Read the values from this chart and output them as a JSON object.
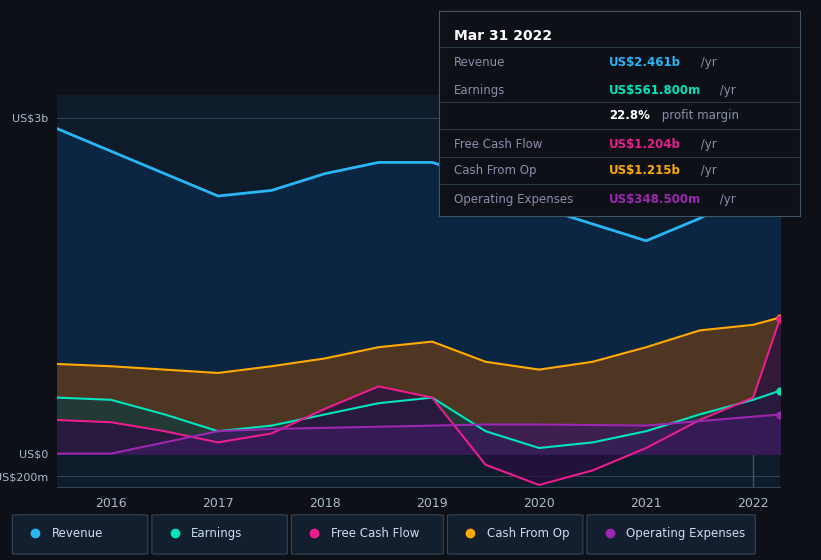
{
  "bg_color": "#0d1117",
  "chart_bg": "#0d1b2a",
  "years": [
    2015.5,
    2016.0,
    2016.5,
    2017.0,
    2017.5,
    2018.0,
    2018.5,
    2019.0,
    2019.5,
    2020.0,
    2020.5,
    2021.0,
    2021.5,
    2022.0,
    2022.25
  ],
  "revenue": [
    2900,
    2700,
    2500,
    2300,
    2350,
    2500,
    2600,
    2600,
    2450,
    2200,
    2050,
    1900,
    2100,
    2350,
    2461
  ],
  "cash_from_op": [
    800,
    780,
    750,
    720,
    780,
    850,
    950,
    1000,
    820,
    750,
    820,
    950,
    1100,
    1150,
    1215
  ],
  "earnings": [
    500,
    480,
    350,
    200,
    250,
    350,
    450,
    500,
    200,
    50,
    100,
    200,
    350,
    480,
    562
  ],
  "free_cash_flow": [
    300,
    280,
    200,
    100,
    180,
    400,
    600,
    500,
    -100,
    -280,
    -150,
    50,
    300,
    500,
    1204
  ],
  "op_expenses": [
    0,
    0,
    100,
    200,
    220,
    230,
    240,
    250,
    260,
    260,
    255,
    250,
    290,
    330,
    349
  ],
  "revenue_color": "#29b6f6",
  "earnings_color": "#00e5be",
  "fcf_color": "#e91e8c",
  "cashop_color": "#ffaa00",
  "opex_color": "#9c27b0",
  "tooltip_lines": [
    {
      "label": "Mar 31 2022",
      "value": "",
      "lcolor": "#ffffff",
      "vcolor": "#ffffff",
      "bold": true,
      "fs": 10
    },
    {
      "label": "Revenue",
      "value": "US$2.461b /yr",
      "lcolor": "#888fa8",
      "vcolor": "#29b6f6",
      "bold": false,
      "fs": 8.5
    },
    {
      "label": "Earnings",
      "value": "US$561.800m /yr",
      "lcolor": "#888fa8",
      "vcolor": "#00e5be",
      "bold": false,
      "fs": 8.5
    },
    {
      "label": "",
      "value": "22.8% profit margin",
      "lcolor": "#888fa8",
      "vcolor": "#ffffff",
      "bold": false,
      "fs": 8.5
    },
    {
      "label": "Free Cash Flow",
      "value": "US$1.204b /yr",
      "lcolor": "#888fa8",
      "vcolor": "#e91e8c",
      "bold": false,
      "fs": 8.5
    },
    {
      "label": "Cash From Op",
      "value": "US$1.215b /yr",
      "lcolor": "#888fa8",
      "vcolor": "#ffaa00",
      "bold": false,
      "fs": 8.5
    },
    {
      "label": "Operating Expenses",
      "value": "US$348.500m /yr",
      "lcolor": "#888fa8",
      "vcolor": "#9c27b0",
      "bold": false,
      "fs": 8.5
    }
  ],
  "legend_items": [
    {
      "label": "Revenue",
      "color": "#29b6f6"
    },
    {
      "label": "Earnings",
      "color": "#00e5be"
    },
    {
      "label": "Free Cash Flow",
      "color": "#e91e8c"
    },
    {
      "label": "Cash From Op",
      "color": "#ffaa00"
    },
    {
      "label": "Operating Expenses",
      "color": "#9c27b0"
    }
  ]
}
